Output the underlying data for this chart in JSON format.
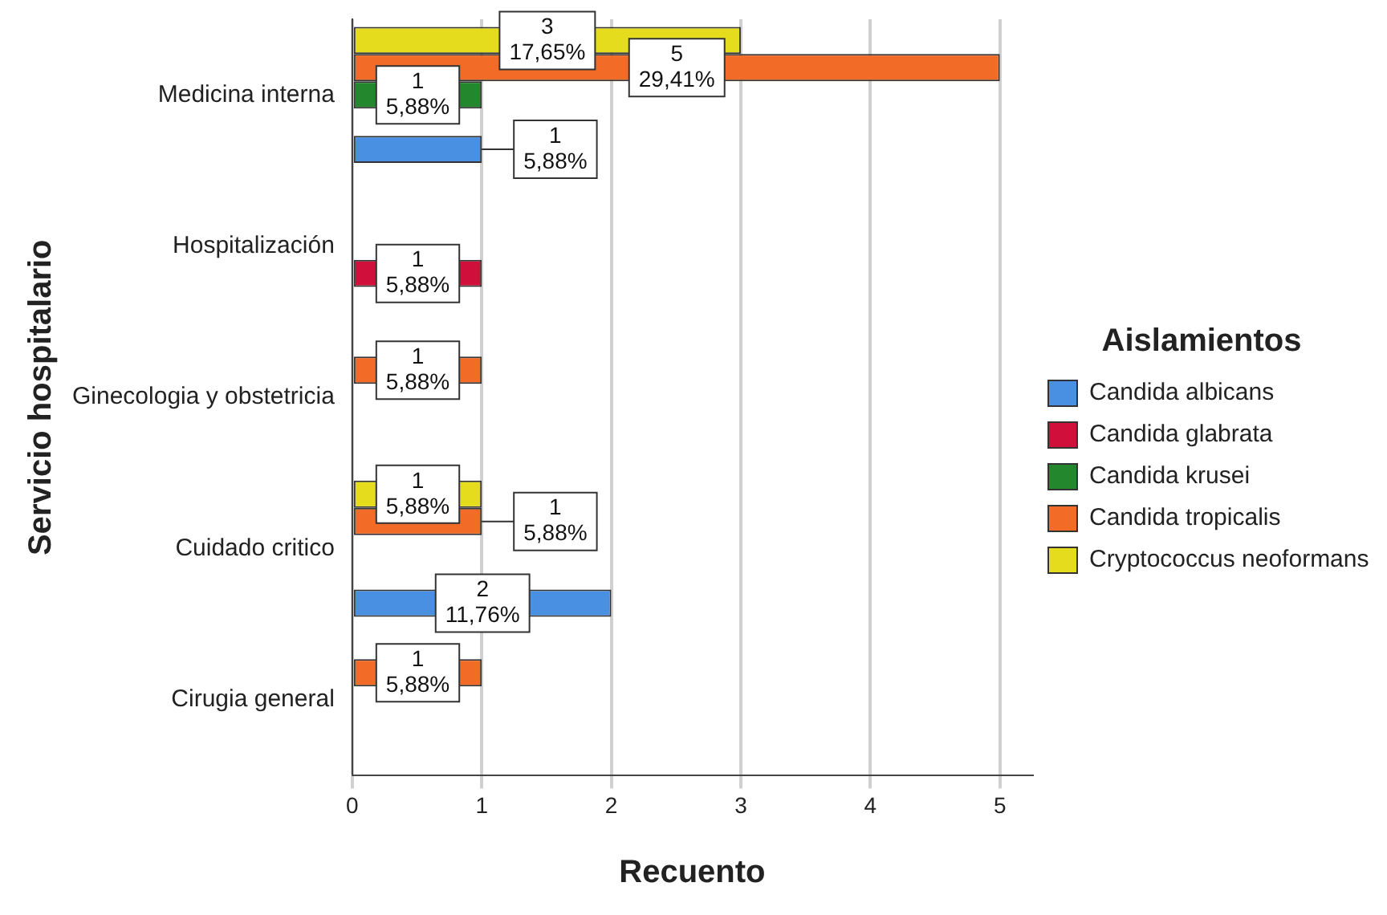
{
  "chart_data": {
    "type": "bar",
    "orientation": "horizontal",
    "xlabel": "Recuento",
    "ylabel": "Servicio hospitalario",
    "legend_title": "Aislamientos",
    "legend": "right",
    "categories": [
      "Medicina interna",
      "Hospitalización",
      "Ginecologia y obstetricia",
      "Cuidado critico",
      "Cirugia general"
    ],
    "series": [
      {
        "name": "Candida albicans",
        "color": "#4a90e2",
        "values": [
          1,
          null,
          null,
          2,
          null
        ],
        "value_labels": [
          "1\n5,88%",
          null,
          null,
          "2\n11,76%",
          null
        ]
      },
      {
        "name": "Candida glabrata",
        "color": "#d0103a",
        "values": [
          null,
          1,
          null,
          null,
          null
        ],
        "value_labels": [
          null,
          "1\n5,88%",
          null,
          null,
          null
        ]
      },
      {
        "name": "Candida krusei",
        "color": "#23882d",
        "values": [
          1,
          null,
          null,
          null,
          null
        ],
        "value_labels": [
          "1\n5,88%",
          null,
          null,
          null,
          null
        ]
      },
      {
        "name": "Candida tropicalis",
        "color": "#f26b27",
        "values": [
          5,
          null,
          1,
          1,
          1
        ],
        "value_labels": [
          "5\n29,41%",
          null,
          "1\n5,88%",
          "1\n5,88%",
          "1\n5,88%"
        ]
      },
      {
        "name": "Cryptococcus neoformans",
        "color": "#e6dc1e",
        "values": [
          3,
          null,
          null,
          1,
          null
        ],
        "value_labels": [
          "3\n17,65%",
          null,
          null,
          "1\n5,88%",
          null
        ]
      }
    ],
    "xlim": [
      0,
      5.25
    ],
    "xticks": [
      0,
      1,
      2,
      3,
      4,
      5
    ],
    "grid": "x"
  }
}
